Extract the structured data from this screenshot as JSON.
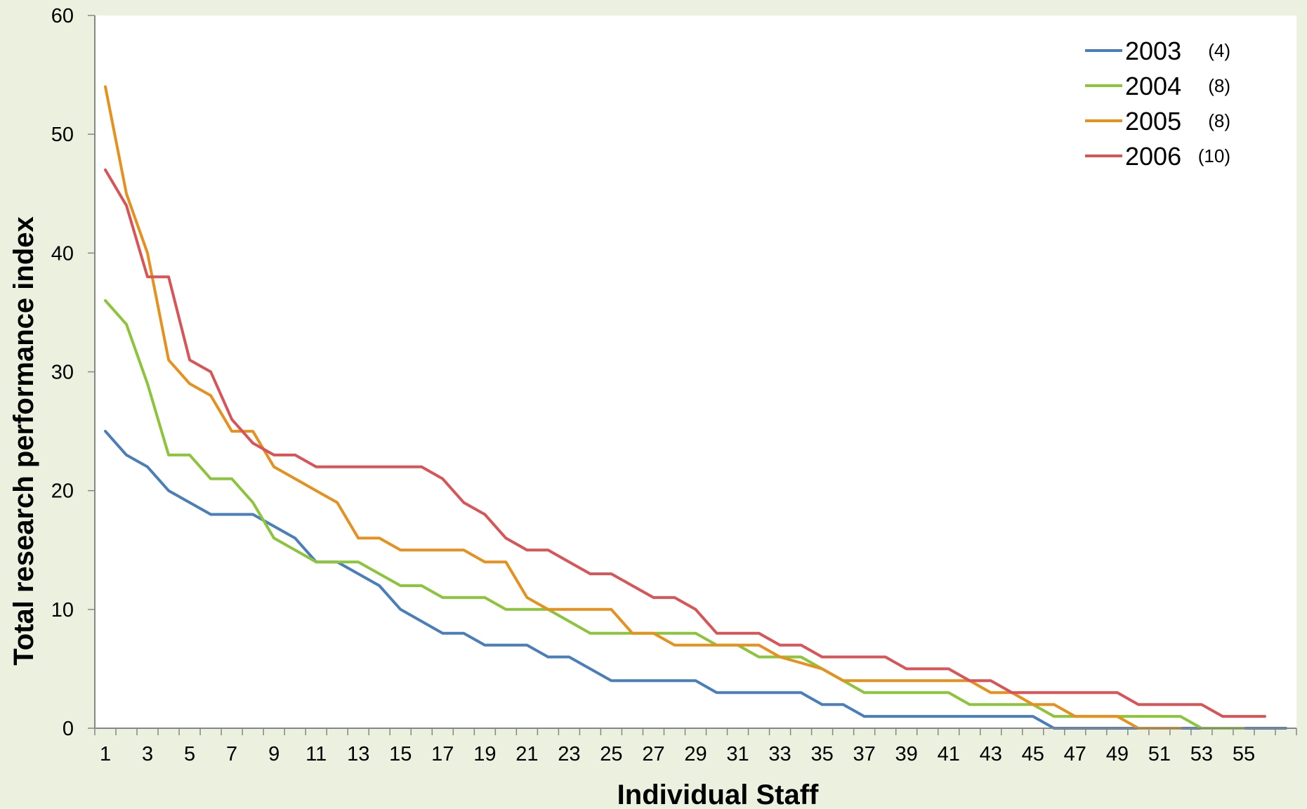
{
  "chart_data": {
    "type": "line",
    "title": "",
    "xlabel": "Individual Staff",
    "ylabel": "Total research performance index",
    "xlim": [
      0.5,
      57.5
    ],
    "ylim": [
      0,
      60
    ],
    "y_ticks": [
      0,
      10,
      20,
      30,
      40,
      50,
      60
    ],
    "x_tick_labels": [
      1,
      3,
      5,
      7,
      9,
      11,
      13,
      15,
      17,
      19,
      21,
      23,
      25,
      27,
      29,
      31,
      33,
      35,
      37,
      39,
      41,
      43,
      45,
      47,
      49,
      51,
      53,
      55
    ],
    "grid": false,
    "legend_position": "top-right",
    "series": [
      {
        "name": "2003",
        "count_label": "(4)",
        "color": "#4a7ebb",
        "values": [
          25,
          23,
          22,
          20,
          19,
          18,
          18,
          18,
          17,
          16,
          14,
          14,
          13,
          12,
          10,
          9,
          8,
          8,
          7,
          7,
          7,
          6,
          6,
          5,
          4,
          4,
          4,
          4,
          4,
          3,
          3,
          3,
          3,
          3,
          2,
          2,
          1,
          1,
          1,
          1,
          1,
          1,
          1,
          1,
          1,
          0,
          0,
          0,
          0,
          0,
          0,
          0,
          0,
          0,
          0,
          0,
          0
        ]
      },
      {
        "name": "2004",
        "count_label": "(8)",
        "color": "#8cc43c",
        "values": [
          36,
          34,
          29,
          23,
          23,
          21,
          21,
          19,
          16,
          15,
          14,
          14,
          14,
          13,
          12,
          12,
          11,
          11,
          11,
          10,
          10,
          10,
          9,
          8,
          8,
          8,
          8,
          8,
          8,
          7,
          7,
          6,
          6,
          6,
          5,
          4,
          3,
          3,
          3,
          3,
          3,
          2,
          2,
          2,
          2,
          1,
          1,
          1,
          1,
          1,
          1,
          1,
          0,
          0,
          0
        ]
      },
      {
        "name": "2005",
        "count_label": "(8)",
        "color": "#e6901e",
        "values": [
          54,
          45,
          40,
          31,
          29,
          28,
          25,
          25,
          22,
          21,
          20,
          19,
          16,
          16,
          15,
          15,
          15,
          15,
          14,
          14,
          11,
          10,
          10,
          10,
          10,
          8,
          8,
          7,
          7,
          7,
          7,
          7,
          6,
          5.5,
          5,
          4,
          4,
          4,
          4,
          4,
          4,
          4,
          3,
          3,
          2,
          2,
          1,
          1,
          1,
          0,
          0,
          0
        ]
      },
      {
        "name": "2006",
        "count_label": "(10)",
        "color": "#d95457",
        "values": [
          47,
          44,
          38,
          38,
          31,
          30,
          26,
          24,
          23,
          23,
          22,
          22,
          22,
          22,
          22,
          22,
          21,
          19,
          18,
          16,
          15,
          15,
          14,
          13,
          13,
          12,
          11,
          11,
          10,
          8,
          8,
          8,
          7,
          7,
          6,
          6,
          6,
          6,
          5,
          5,
          5,
          4,
          4,
          3,
          3,
          3,
          3,
          3,
          3,
          2,
          2,
          2,
          2,
          1,
          1,
          1
        ]
      }
    ]
  }
}
